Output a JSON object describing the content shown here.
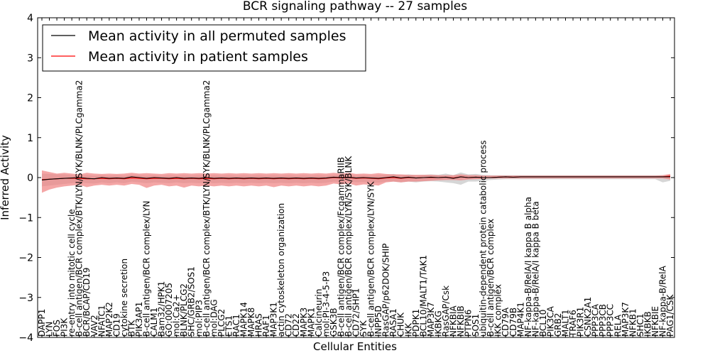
{
  "chart_data": {
    "type": "line",
    "title": "BCR signaling pathway -- 27 samples",
    "xlabel": "Cellular Entities",
    "ylabel": "Inferred Activity",
    "ylim": [
      -4,
      4
    ],
    "yticks": [
      -4,
      -3,
      -2,
      -1,
      0,
      1,
      2,
      3,
      4
    ],
    "grid": false,
    "legend_position": "top-left",
    "colors": {
      "permuted_line": "#000000",
      "permuted_band": "#c8c8c8",
      "patient_line": "#ff0000",
      "patient_band": "#f08080"
    },
    "categories": [
      "DAPP1",
      "LYN",
      "FOS",
      "PI3K",
      "re-entry into mitotic cell cycle",
      "B-cell antigen/BCR complex/BTK/LYN/SYK/BLNK/PLCgamma2",
      "BCR/BCAP/CD19",
      "VAV2",
      "NFATC1",
      "MAP2K2",
      "CD19",
      "cytokine secretion",
      "BTK",
      "PIK3AP1",
      "B-cell antigen/BCR complex/LYN",
      "CALM1",
      "Bam32/HPK1",
      "GO:0007205",
      "mol:Ca2+",
      "BLNK/PLCG2",
      "SHC/GRB2/SOS1",
      "mol:PIP3",
      "B-cell antigen/BCR complex/BTK/LYN/SYK/BLNK/PLCgamma2",
      "mol:DAG",
      "PLCG2",
      "ETS1",
      "RAC1",
      "MAPK14",
      "MAPK8",
      "HRAS",
      "RAF1",
      "MAP3K1",
      "actin cytoskeleton organization",
      "CD72",
      "CD22",
      "MAPK3",
      "MAPK1",
      "Calcineurin",
      "mol:PI-3-4-5-P3",
      "GSK3B",
      "B-cell antigen/BCR complex/FcgammaRIIB",
      "B-cell antigen/BCR complex/LYN/SYK/BLNK",
      "CD72/SHP1",
      "SYK",
      "B-cell antigen/BCR complex/LYN/SYK",
      "INPP5D",
      "RasGAP/p62DOK/SHIP",
      "RASA1",
      "CHUK",
      "IKK",
      "PDPK1",
      "BCL10/MALT1/TAK1",
      "MAP3K7",
      "IKBKG",
      "RasGAP/Csk",
      "NFKBIA",
      "NFKBIB",
      "PTPN6",
      "SOS1",
      "ubiquitin-dependent protein catabolic process",
      "B-cell antigen/BCR complex",
      "IKK complex",
      "CD79A",
      "CD79B",
      "MAP4K1",
      "NF-kappa-B/RelA/I kappa B alpha",
      "NF-kappa-B/RelA/I kappa B beta",
      "BCL10",
      "PIK3CA",
      "GRB2",
      "MALT1",
      "TRAF6",
      "PIK3R1",
      "CSNK2A1",
      "PPP3CA",
      "PPP3CB",
      "PPP3CC",
      "RELA",
      "MAP3K7",
      "NFKB1",
      "SHC1",
      "IKBKB",
      "NFKBIE",
      "NF-kappa-B/RelA",
      "PAG1/CSK"
    ],
    "series": [
      {
        "name": "Mean activity in all permuted samples",
        "values": [
          -0.06,
          -0.04,
          -0.03,
          -0.02,
          -0.01,
          0.0,
          -0.02,
          -0.03,
          0.0,
          -0.02,
          -0.01,
          -0.02,
          0.02,
          0.0,
          -0.02,
          0.0,
          -0.01,
          -0.02,
          0.0,
          -0.02,
          -0.01,
          -0.02,
          0.0,
          -0.02,
          -0.01,
          -0.02,
          -0.01,
          -0.02,
          -0.01,
          -0.02,
          -0.01,
          -0.02,
          -0.01,
          -0.02,
          -0.01,
          -0.02,
          -0.01,
          -0.02,
          -0.01,
          0.01,
          0.0,
          0.01,
          -0.01,
          0.0,
          -0.01,
          -0.02,
          0.0,
          0.02,
          -0.01,
          0.01,
          -0.01,
          0.0,
          0.01,
          0.0,
          0.01,
          -0.02,
          0.02,
          0.0,
          0.01,
          0.0,
          0.0,
          0.01,
          0.02,
          0.01,
          0.02,
          0.02,
          0.02,
          0.02,
          0.02,
          0.02,
          0.02,
          0.02,
          0.02,
          0.02,
          0.02,
          0.02,
          0.02,
          0.02,
          0.02,
          0.02,
          0.02,
          0.02,
          0.02,
          0.02,
          0.02
        ],
        "band_upper": [
          0.1,
          0.09,
          0.08,
          0.08,
          0.06,
          0.05,
          0.06,
          0.05,
          0.06,
          0.05,
          0.06,
          0.05,
          0.07,
          0.06,
          0.05,
          0.06,
          0.05,
          0.06,
          0.05,
          0.06,
          0.05,
          0.06,
          0.05,
          0.06,
          0.05,
          0.06,
          0.05,
          0.06,
          0.05,
          0.06,
          0.05,
          0.06,
          0.05,
          0.06,
          0.05,
          0.06,
          0.05,
          0.06,
          0.05,
          0.07,
          0.06,
          0.07,
          0.05,
          0.06,
          0.05,
          0.06,
          0.07,
          0.09,
          0.06,
          0.08,
          0.06,
          0.07,
          0.08,
          0.07,
          0.1,
          0.06,
          0.13,
          0.08,
          0.09,
          0.07,
          0.06,
          0.06,
          0.06,
          0.06,
          0.06,
          0.06,
          0.06,
          0.06,
          0.06,
          0.06,
          0.06,
          0.06,
          0.06,
          0.06,
          0.06,
          0.06,
          0.06,
          0.06,
          0.06,
          0.06,
          0.06,
          0.06,
          0.06,
          0.06,
          0.07
        ],
        "band_lower": [
          -0.22,
          -0.2,
          -0.18,
          -0.16,
          -0.14,
          -0.12,
          -0.14,
          -0.15,
          -0.12,
          -0.14,
          -0.12,
          -0.14,
          -0.1,
          -0.12,
          -0.14,
          -0.12,
          -0.13,
          -0.14,
          -0.12,
          -0.14,
          -0.13,
          -0.14,
          -0.12,
          -0.14,
          -0.13,
          -0.14,
          -0.13,
          -0.14,
          -0.13,
          -0.14,
          -0.13,
          -0.14,
          -0.13,
          -0.14,
          -0.13,
          -0.14,
          -0.13,
          -0.14,
          -0.13,
          -0.1,
          -0.11,
          -0.1,
          -0.12,
          -0.11,
          -0.12,
          -0.13,
          -0.1,
          -0.1,
          -0.12,
          -0.1,
          -0.12,
          -0.1,
          -0.09,
          -0.1,
          -0.12,
          -0.14,
          -0.18,
          -0.1,
          -0.1,
          -0.08,
          -0.06,
          -0.05,
          -0.04,
          -0.04,
          -0.04,
          -0.04,
          -0.04,
          -0.04,
          -0.04,
          -0.04,
          -0.04,
          -0.04,
          -0.04,
          -0.04,
          -0.04,
          -0.04,
          -0.04,
          -0.04,
          -0.04,
          -0.04,
          -0.04,
          -0.04,
          -0.04,
          -0.12,
          -0.08
        ]
      },
      {
        "name": "Mean activity in patient samples",
        "values": [
          -0.05,
          -0.04,
          -0.03,
          -0.02,
          -0.02,
          -0.02,
          -0.03,
          -0.03,
          -0.02,
          -0.03,
          -0.02,
          -0.03,
          -0.01,
          -0.02,
          -0.03,
          -0.02,
          -0.02,
          -0.03,
          -0.02,
          -0.03,
          -0.02,
          -0.03,
          -0.02,
          -0.03,
          -0.02,
          -0.03,
          -0.02,
          -0.03,
          -0.02,
          -0.03,
          -0.02,
          -0.03,
          -0.02,
          -0.03,
          -0.02,
          -0.03,
          -0.02,
          -0.03,
          -0.02,
          0.0,
          -0.01,
          0.0,
          -0.02,
          -0.01,
          -0.02,
          -0.03,
          -0.01,
          0.0,
          -0.02,
          0.0,
          -0.01,
          0.0,
          0.0,
          0.0,
          0.01,
          -0.01,
          0.02,
          0.0,
          0.01,
          0.0,
          0.0,
          0.01,
          0.02,
          0.01,
          0.02,
          0.02,
          0.02,
          0.02,
          0.02,
          0.02,
          0.02,
          0.02,
          0.02,
          0.02,
          0.02,
          0.02,
          0.02,
          0.02,
          0.02,
          0.02,
          0.02,
          0.02,
          0.02,
          0.02,
          0.04
        ],
        "band_upper": [
          0.18,
          0.14,
          0.1,
          0.12,
          0.1,
          0.08,
          0.12,
          0.1,
          0.09,
          0.1,
          0.09,
          0.1,
          0.12,
          0.1,
          0.11,
          0.1,
          0.09,
          0.11,
          0.1,
          0.11,
          0.1,
          0.11,
          0.1,
          0.11,
          0.1,
          0.11,
          0.1,
          0.11,
          0.1,
          0.11,
          0.1,
          0.11,
          0.1,
          0.11,
          0.1,
          0.11,
          0.1,
          0.11,
          0.1,
          0.12,
          0.1,
          0.12,
          0.09,
          0.1,
          0.09,
          0.11,
          0.09,
          0.08,
          0.08,
          0.07,
          0.07,
          0.07,
          0.07,
          0.06,
          0.06,
          0.06,
          0.08,
          0.06,
          0.06,
          0.05,
          0.05,
          0.05,
          0.05,
          0.05,
          0.05,
          0.05,
          0.05,
          0.05,
          0.05,
          0.05,
          0.05,
          0.05,
          0.05,
          0.05,
          0.05,
          0.05,
          0.05,
          0.05,
          0.05,
          0.05,
          0.05,
          0.05,
          0.05,
          0.06,
          0.09
        ],
        "band_lower": [
          -0.38,
          -0.3,
          -0.25,
          -0.22,
          -0.2,
          -0.18,
          -0.24,
          -0.2,
          -0.18,
          -0.2,
          -0.18,
          -0.2,
          -0.16,
          -0.18,
          -0.26,
          -0.2,
          -0.18,
          -0.22,
          -0.2,
          -0.25,
          -0.2,
          -0.22,
          -0.2,
          -0.22,
          -0.2,
          -0.22,
          -0.2,
          -0.22,
          -0.2,
          -0.22,
          -0.2,
          -0.24,
          -0.2,
          -0.22,
          -0.2,
          -0.22,
          -0.2,
          -0.22,
          -0.2,
          -0.15,
          -0.17,
          -0.15,
          -0.2,
          -0.17,
          -0.18,
          -0.2,
          -0.12,
          -0.1,
          -0.12,
          -0.1,
          -0.1,
          -0.09,
          -0.08,
          -0.07,
          -0.06,
          -0.06,
          -0.07,
          -0.05,
          -0.04,
          -0.03,
          -0.02,
          -0.02,
          -0.02,
          -0.02,
          -0.02,
          -0.02,
          -0.02,
          -0.02,
          -0.02,
          -0.02,
          -0.02,
          -0.02,
          -0.02,
          -0.02,
          -0.02,
          -0.02,
          -0.02,
          -0.02,
          -0.02,
          -0.02,
          -0.02,
          -0.02,
          -0.02,
          -0.02,
          -0.05
        ]
      }
    ]
  }
}
